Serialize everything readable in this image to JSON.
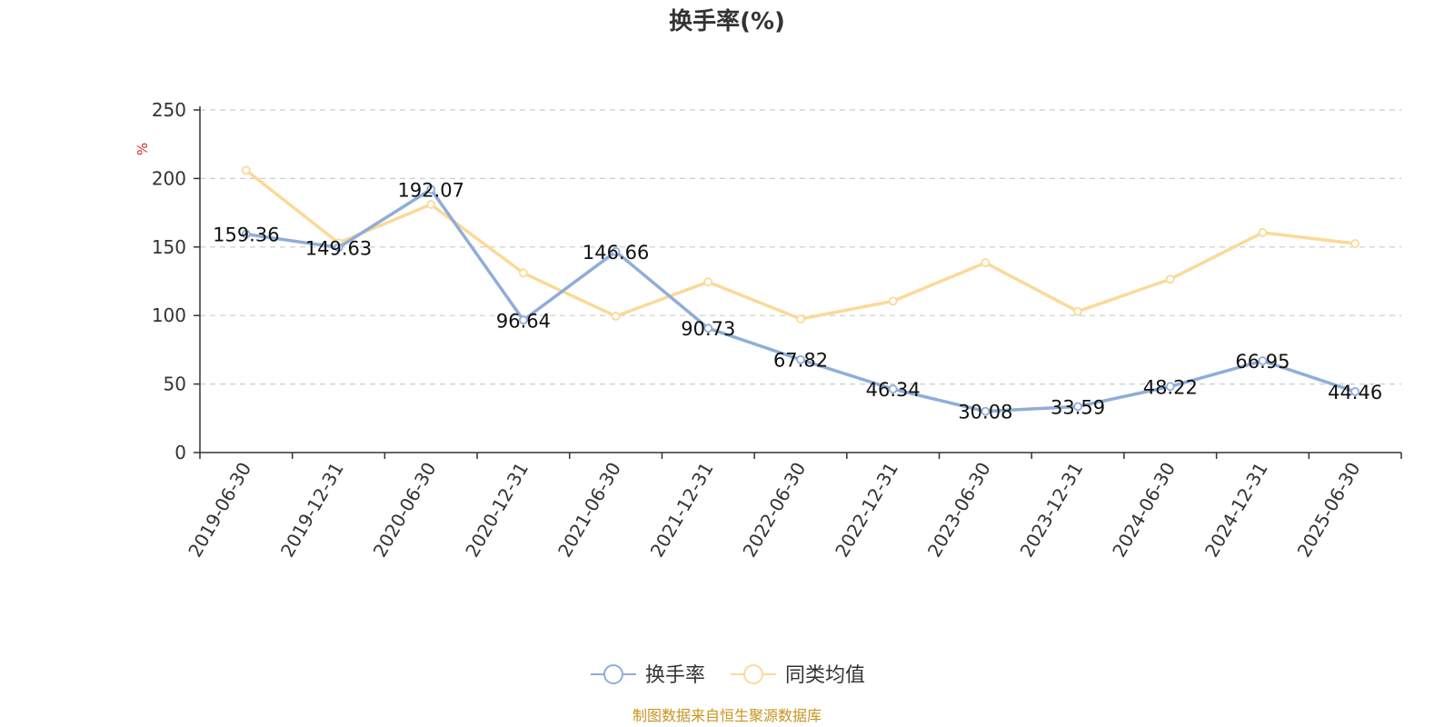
{
  "chart_data": {
    "type": "line",
    "title": "换手率(%)",
    "ylabel": "%",
    "xlabel": "",
    "ylim": [
      0,
      250
    ],
    "yticks": [
      0,
      50,
      100,
      150,
      200,
      250
    ],
    "grid": true,
    "legend_position": "bottom",
    "categories": [
      "2019-06-30",
      "2019-12-31",
      "2020-06-30",
      "2020-12-31",
      "2021-06-30",
      "2021-12-31",
      "2022-06-30",
      "2022-12-31",
      "2023-06-30",
      "2023-12-31",
      "2024-06-30",
      "2024-12-31",
      "2025-06-30"
    ],
    "series": [
      {
        "name": "换手率",
        "color": "#8fadd9",
        "show_labels": true,
        "values": [
          159.36,
          149.63,
          192.07,
          96.64,
          146.66,
          90.73,
          67.82,
          46.34,
          30.08,
          33.59,
          48.22,
          66.95,
          44.46
        ],
        "labels": [
          "159.36",
          "149.63",
          "192.07",
          "96.64",
          "146.66",
          "90.73",
          "67.82",
          "46.34",
          "30.08",
          "33.59",
          "48.22",
          "66.95",
          "44.46"
        ]
      },
      {
        "name": "同类均值",
        "color": "#fcd998",
        "show_labels": false,
        "values": [
          206,
          153,
          181,
          131,
          99.5,
          124.5,
          97.5,
          110.5,
          138.5,
          103,
          126.5,
          160.5,
          152.5
        ]
      }
    ],
    "source": "制图数据来自恒生聚源数据库"
  }
}
